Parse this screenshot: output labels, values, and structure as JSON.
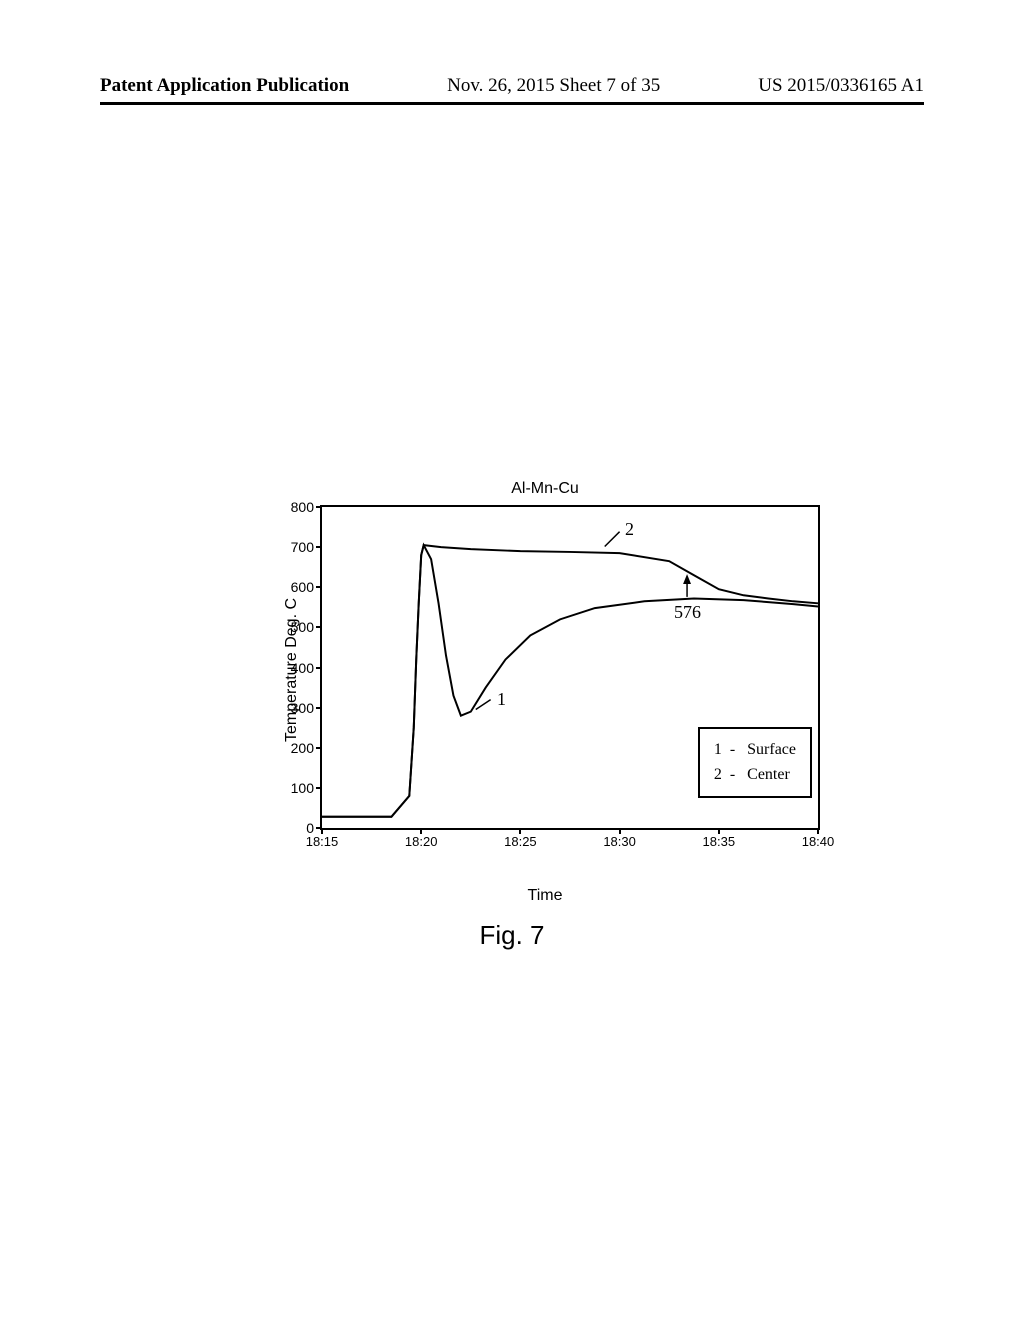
{
  "header": {
    "left": "Patent Application Publication",
    "center": "Nov. 26, 2015  Sheet 7 of 35",
    "right": "US 2015/0336165 A1"
  },
  "chart": {
    "type": "line",
    "title": "Al-Mn-Cu",
    "xlabel": "Time",
    "ylabel": "Temperature Deg. C",
    "ylim": [
      0,
      800
    ],
    "ytick_step": 100,
    "yticks": [
      0,
      100,
      200,
      300,
      400,
      500,
      600,
      700,
      800
    ],
    "xticks": [
      "18:15",
      "18:20",
      "18:25",
      "18:30",
      "18:35",
      "18:40"
    ],
    "background_color": "#ffffff",
    "border_color": "#000000",
    "line_color": "#000000",
    "line_width": 2,
    "title_fontsize": 16,
    "label_fontsize": 16,
    "tick_fontsize": 14,
    "series": [
      {
        "name": "Surface",
        "label_num": "1",
        "points": [
          [
            0,
            28
          ],
          [
            0.14,
            28
          ],
          [
            0.176,
            80
          ],
          [
            0.185,
            250
          ],
          [
            0.19,
            420
          ],
          [
            0.195,
            560
          ],
          [
            0.2,
            680
          ],
          [
            0.205,
            705
          ],
          [
            0.22,
            670
          ],
          [
            0.235,
            560
          ],
          [
            0.25,
            430
          ],
          [
            0.265,
            330
          ],
          [
            0.28,
            280
          ],
          [
            0.3,
            290
          ],
          [
            0.33,
            350
          ],
          [
            0.37,
            420
          ],
          [
            0.42,
            480
          ],
          [
            0.48,
            520
          ],
          [
            0.55,
            548
          ],
          [
            0.65,
            565
          ],
          [
            0.75,
            572
          ],
          [
            0.85,
            568
          ],
          [
            0.95,
            558
          ],
          [
            1.0,
            552
          ]
        ]
      },
      {
        "name": "Center",
        "label_num": "2",
        "points": [
          [
            0,
            28
          ],
          [
            0.14,
            28
          ],
          [
            0.176,
            80
          ],
          [
            0.185,
            250
          ],
          [
            0.19,
            420
          ],
          [
            0.195,
            560
          ],
          [
            0.2,
            680
          ],
          [
            0.205,
            705
          ],
          [
            0.24,
            700
          ],
          [
            0.3,
            695
          ],
          [
            0.4,
            690
          ],
          [
            0.5,
            688
          ],
          [
            0.6,
            685
          ],
          [
            0.7,
            665
          ],
          [
            0.75,
            630
          ],
          [
            0.8,
            595
          ],
          [
            0.85,
            580
          ],
          [
            0.9,
            572
          ],
          [
            0.95,
            565
          ],
          [
            1.0,
            560
          ]
        ]
      }
    ],
    "annotations": {
      "label_1": "1",
      "label_2": "2",
      "value_576": "576"
    },
    "legend": {
      "items": [
        {
          "num": "1",
          "label": "Surface"
        },
        {
          "num": "2",
          "label": "Center"
        }
      ]
    }
  },
  "figure_caption": "Fig. 7"
}
